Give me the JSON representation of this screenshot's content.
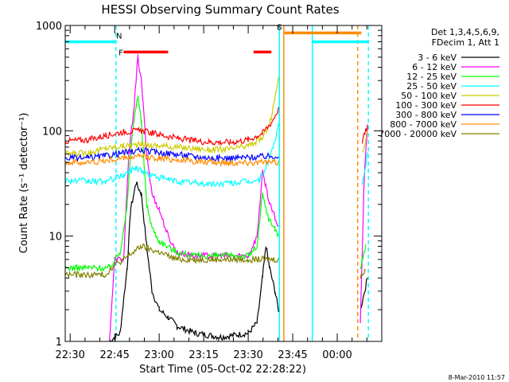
{
  "chart_data": {
    "type": "line",
    "title": "HESSI Observing Summary Count Rates",
    "ylabel": "Count Rate (s⁻¹ detector⁻¹)",
    "xlabel": "Start Time (05-Oct-02 22:28:22)",
    "footer_date": "8-Mar-2010 11:57",
    "y_scale": "log",
    "ylim": [
      1,
      1000
    ],
    "xlim": [
      22.4722,
      24.25
    ],
    "y_ticks": [
      {
        "v": 1,
        "label": "1"
      },
      {
        "v": 10,
        "label": "10"
      },
      {
        "v": 100,
        "label": "100"
      },
      {
        "v": 1000,
        "label": "1000"
      }
    ],
    "x_ticks": [
      {
        "v": 22.5,
        "label": "22:30"
      },
      {
        "v": 22.75,
        "label": "22:45"
      },
      {
        "v": 23.0,
        "label": "23:00"
      },
      {
        "v": 23.25,
        "label": "23:15"
      },
      {
        "v": 23.5,
        "label": "23:30"
      },
      {
        "v": 23.75,
        "label": "23:45"
      },
      {
        "v": 24.0,
        "label": "00:00"
      }
    ],
    "legend_header": [
      "Det 1,3,4,5,6,9,",
      "FDecim 1, Att 1"
    ],
    "series": [
      {
        "name": "3 - 6 keV",
        "color": "#000000",
        "x": [
          22.72,
          22.78,
          22.82,
          22.84,
          22.87,
          22.9,
          22.93,
          22.96,
          23.0,
          23.05,
          23.1,
          23.2,
          23.35,
          23.5,
          23.55,
          23.58,
          23.6,
          23.62,
          23.65,
          23.67,
          24.13,
          24.17
        ],
        "y": [
          1,
          1.2,
          5,
          18,
          32,
          25,
          8,
          3,
          2,
          1.7,
          1.4,
          1.2,
          1.1,
          1.2,
          1.5,
          4,
          8,
          5,
          3,
          2,
          2,
          4
        ]
      },
      {
        "name": "6 - 12 keV",
        "color": "#ff00ff",
        "x": [
          22.72,
          22.75,
          22.8,
          22.83,
          22.86,
          22.88,
          22.9,
          22.93,
          22.96,
          23.0,
          23.05,
          23.1,
          23.2,
          23.35,
          23.5,
          23.55,
          23.58,
          23.6,
          23.62,
          23.65,
          23.67,
          24.13,
          24.15,
          24.17
        ],
        "y": [
          1,
          6,
          6,
          60,
          180,
          500,
          300,
          60,
          25,
          18,
          10,
          7,
          6.5,
          6.5,
          6.5,
          10,
          40,
          30,
          20,
          15,
          12,
          1.5,
          30,
          120
        ]
      },
      {
        "name": "12 - 25 keV",
        "color": "#00ff00",
        "x": [
          22.47,
          22.6,
          22.72,
          22.78,
          22.82,
          22.85,
          22.88,
          22.9,
          22.93,
          22.96,
          23.0,
          23.1,
          23.2,
          23.35,
          23.5,
          23.55,
          23.58,
          23.6,
          23.62,
          23.65,
          23.67,
          24.13,
          24.16
        ],
        "y": [
          5,
          5,
          5,
          7,
          20,
          100,
          220,
          120,
          20,
          12,
          9,
          7,
          6.5,
          6.5,
          6.5,
          8,
          25,
          18,
          14,
          12,
          10,
          5,
          8
        ]
      },
      {
        "name": "25 - 50 keV",
        "color": "#00ffff",
        "x": [
          22.47,
          22.6,
          22.7,
          22.8,
          22.87,
          22.9,
          22.95,
          23.0,
          23.1,
          23.2,
          23.3,
          23.4,
          23.5,
          23.56,
          23.6,
          23.64,
          23.67,
          24.14,
          24.17
        ],
        "y": [
          34,
          33,
          33,
          38,
          45,
          42,
          38,
          36,
          33,
          32,
          31,
          32,
          33,
          34,
          45,
          70,
          110,
          30,
          60
        ]
      },
      {
        "name": "50 - 100 keV",
        "color": "#cccc00",
        "x": [
          22.47,
          22.6,
          22.7,
          22.8,
          22.9,
          23.0,
          23.1,
          23.2,
          23.3,
          23.4,
          23.5,
          23.58,
          23.63,
          23.67,
          24.14,
          24.17
        ],
        "y": [
          60,
          62,
          68,
          72,
          74,
          72,
          70,
          68,
          66,
          67,
          72,
          85,
          130,
          330,
          60,
          100
        ]
      },
      {
        "name": "100 - 300 keV",
        "color": "#ff0000",
        "x": [
          22.47,
          22.6,
          22.7,
          22.8,
          22.9,
          23.0,
          23.1,
          23.2,
          23.3,
          23.4,
          23.5,
          23.58,
          23.63,
          23.67,
          24.14,
          24.17
        ],
        "y": [
          80,
          82,
          90,
          98,
          100,
          92,
          85,
          80,
          78,
          78,
          82,
          95,
          120,
          160,
          80,
          110
        ]
      },
      {
        "name": "300 - 800 keV",
        "color": "#0000ff",
        "x": [
          22.47,
          22.6,
          22.7,
          22.8,
          22.9,
          23.0,
          23.1,
          23.2,
          23.3,
          23.4,
          23.5,
          23.6,
          23.67
        ],
        "y": [
          55,
          55,
          58,
          62,
          65,
          62,
          60,
          57,
          55,
          55,
          56,
          57,
          58
        ]
      },
      {
        "name": "800 - 7000 keV",
        "color": "#ff8c00",
        "x": [
          22.47,
          22.6,
          22.7,
          22.8,
          22.9,
          23.0,
          23.1,
          23.2,
          23.3,
          23.4,
          23.5,
          23.6,
          23.67
        ],
        "y": [
          50,
          50,
          52,
          55,
          57,
          55,
          53,
          51,
          50,
          50,
          50,
          50,
          50
        ]
      },
      {
        "name": "7000 - 20000 keV",
        "color": "#808000",
        "x": [
          22.47,
          22.6,
          22.7,
          22.73,
          22.8,
          22.9,
          23.0,
          23.1,
          23.2,
          23.3,
          23.4,
          23.5,
          23.6,
          23.67,
          24.13,
          24.16
        ],
        "y": [
          4.3,
          4.3,
          4.3,
          5,
          6,
          8,
          7,
          6,
          6,
          6,
          6,
          6,
          6,
          6,
          4,
          5
        ]
      }
    ],
    "vlines": [
      {
        "x": 22.757,
        "color": "#00ffff",
        "style": "dashed"
      },
      {
        "x": 23.675,
        "color": "#00ffff",
        "style": "solid"
      },
      {
        "x": 23.7,
        "color": "#ff8c00",
        "style": "solid"
      },
      {
        "x": 23.86,
        "color": "#00ffff",
        "style": "solid"
      },
      {
        "x": 24.115,
        "color": "#ff8c00",
        "style": "dashed"
      },
      {
        "x": 24.175,
        "color": "#00ffff",
        "style": "dashed"
      }
    ],
    "flag_bars": [
      {
        "x1": 22.472,
        "x2": 22.757,
        "y": 700,
        "color": "#00ffff",
        "label": "N",
        "label_x": 22.775
      },
      {
        "x1": 22.8,
        "x2": 23.05,
        "y": 560,
        "color": "#ff0000",
        "label": "F",
        "label_x": 22.785
      },
      {
        "x1": 23.53,
        "x2": 23.63,
        "y": 560,
        "color": "#ff0000"
      },
      {
        "x1": 23.7,
        "x2": 24.135,
        "y": 850,
        "color": "#ff8c00",
        "label": "S",
        "label_x": 23.675
      },
      {
        "x1": 23.86,
        "x2": 24.175,
        "y": 700,
        "color": "#00ffff"
      }
    ]
  }
}
